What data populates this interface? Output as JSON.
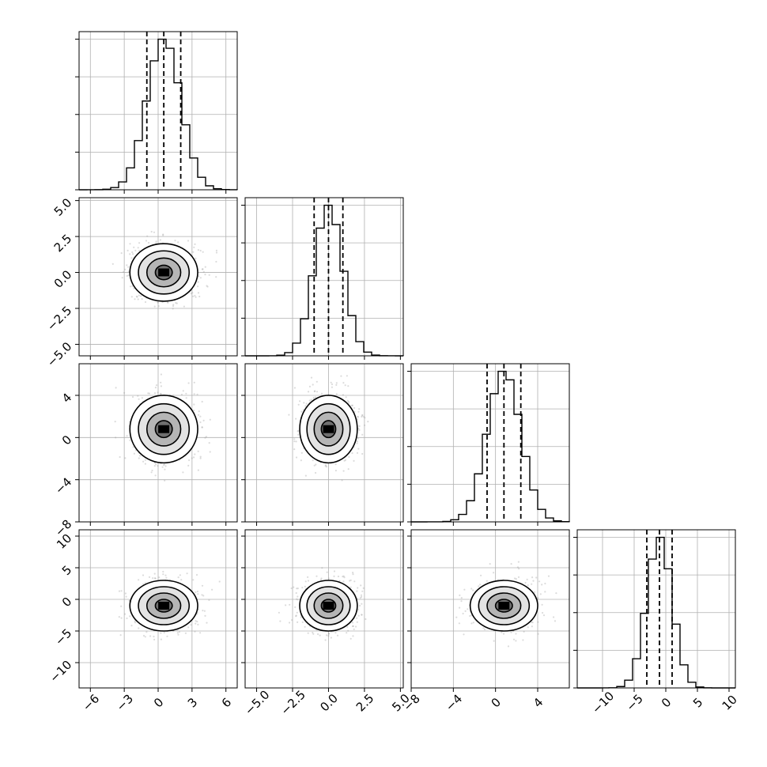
{
  "chart_data": {
    "type": "corner",
    "grid": true,
    "parameters": [
      {
        "index": 0,
        "mean": 0.5,
        "sigma": 1.5,
        "range": [
          -7,
          7
        ],
        "ticks": [
          -6,
          -3,
          0,
          3,
          6
        ],
        "tick_labels": [
          "−6",
          "−3",
          "0",
          "3",
          "6"
        ],
        "quantiles": [
          -1.0,
          0.5,
          2.0
        ],
        "hist_bins": 20
      },
      {
        "index": 1,
        "mean": 0.0,
        "sigma": 1.0,
        "range": [
          -5.8,
          5.2
        ],
        "ticks": [
          -5.0,
          -2.5,
          0.0,
          2.5,
          5.0
        ],
        "tick_labels": [
          "−5.0",
          "−2.5",
          "0.0",
          "2.5",
          "5.0"
        ],
        "quantiles": [
          -1.0,
          0.0,
          1.0
        ],
        "hist_bins": 20
      },
      {
        "index": 2,
        "mean": 0.8,
        "sigma": 1.6,
        "range": [
          -8,
          7
        ],
        "ticks": [
          -8,
          -4,
          0,
          4
        ],
        "tick_labels": [
          "−8",
          "−4",
          "0",
          "4"
        ],
        "quantiles": [
          -0.8,
          0.8,
          2.4
        ],
        "hist_bins": 20
      },
      {
        "index": 3,
        "mean": -1.0,
        "sigma": 2.0,
        "range": [
          -14,
          11
        ],
        "ticks": [
          -10,
          -5,
          0,
          5,
          10
        ],
        "tick_labels": [
          "−10",
          "−5",
          "0",
          "5",
          "10"
        ],
        "quantiles": [
          -3.0,
          -1.0,
          1.0
        ],
        "hist_bins": 20
      }
    ],
    "contour_levels_sigma": [
      0.5,
      1.0,
      1.5,
      2.0
    ],
    "xlabel": "",
    "ylabel": "",
    "title": ""
  }
}
